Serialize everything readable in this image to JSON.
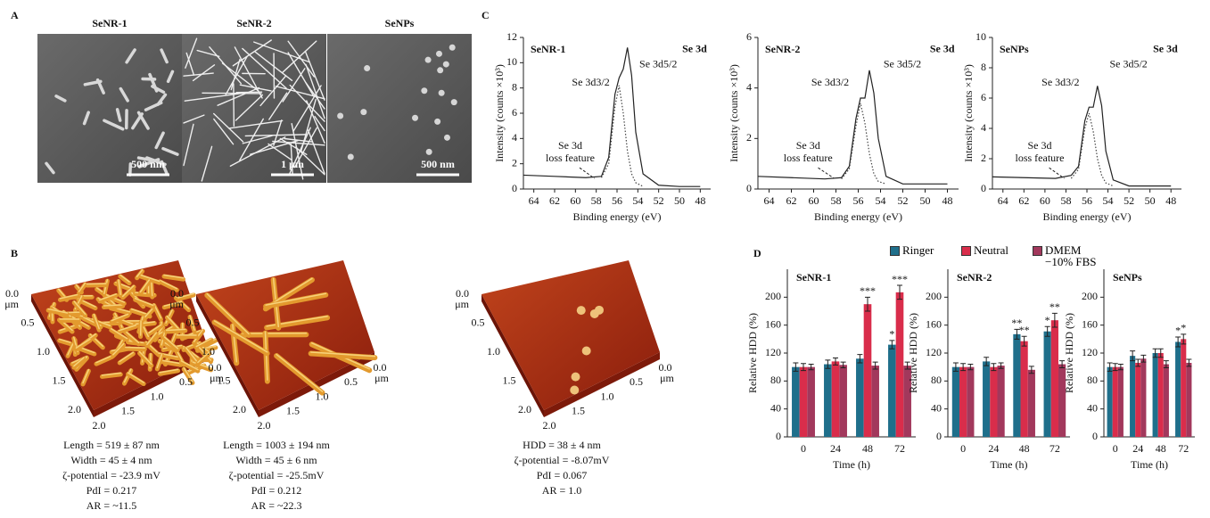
{
  "figure": {
    "A": {
      "label": "A",
      "images": [
        {
          "title": "SeNR-1",
          "scale": "500 nm"
        },
        {
          "title": "SeNR-2",
          "scale": "1 μm"
        },
        {
          "title": "SeNPs",
          "scale": "500 nm"
        }
      ]
    },
    "B": {
      "label": "B",
      "depth_ticks": [
        "0.0",
        "0.5",
        "1.0",
        "1.5",
        "2.0"
      ],
      "width_ticks": [
        "2.0",
        "1.5",
        "1.0",
        "0.5",
        "0.0"
      ],
      "unit": "μm",
      "images": [
        {
          "props": [
            "Length = 519 ± 87 nm",
            "Width = 45 ± 4 nm",
            "ζ-potential = -23.9 mV",
            "PdI = 0.217",
            "AR = ~11.5"
          ]
        },
        {
          "props": [
            "Length = 1003 ± 194 nm",
            "Width = 45 ± 6 nm",
            "ζ-potential = -25.5mV",
            "PdI = 0.212",
            "AR = ~22.3"
          ]
        },
        {
          "props": [
            "HDD = 38 ± 4 nm",
            "ζ-potential = -8.07mV",
            "PdI = 0.067",
            "AR = 1.0"
          ]
        }
      ]
    },
    "C": {
      "label": "C"
    },
    "D": {
      "label": "D"
    }
  },
  "chart_data": [
    {
      "type": "line",
      "title": "SeNR-1",
      "annotations": [
        "Se 3d",
        "Se 3d3/2",
        "Se 3d5/2",
        "Se 3d",
        "loss feature"
      ],
      "x_label": "Binding energy (eV)",
      "y_label": "Intensity (counts ×10³)",
      "x": [
        65,
        62,
        59,
        57.5,
        56.8,
        56.2,
        55.8,
        55.4,
        55,
        54.6,
        54.2,
        53.5,
        52,
        50,
        48
      ],
      "xlim": [
        65,
        47
      ],
      "xticks": [
        64,
        62,
        60,
        58,
        56,
        54,
        52,
        50,
        48
      ],
      "ylim": [
        0,
        12
      ],
      "yticks": [
        0,
        2,
        4,
        6,
        8,
        10,
        12
      ],
      "series": [
        {
          "color": "#222222",
          "dash": "solid",
          "values": [
            1.1,
            1.0,
            0.9,
            1.0,
            2.5,
            7.5,
            8.8,
            9.5,
            11.2,
            9.0,
            4.5,
            1.2,
            0.3,
            0.2,
            0.2
          ]
        },
        {
          "color": "#444444",
          "dash": "dotted",
          "values": [
            null,
            null,
            null,
            0.9,
            2.0,
            6.5,
            8.2,
            6.0,
            3.0,
            1.2,
            0.5,
            0.2,
            null,
            null,
            null
          ]
        }
      ]
    },
    {
      "type": "line",
      "title": "SeNR-2",
      "annotations": [
        "Se 3d",
        "Se 3d3/2",
        "Se 3d5/2",
        "Se 3d",
        "loss feature"
      ],
      "x_label": "Binding energy (eV)",
      "y_label": "Intensity (counts ×10³)",
      "x": [
        65,
        62,
        59,
        57.5,
        56.8,
        56.2,
        55.8,
        55.4,
        55,
        54.6,
        54.2,
        53.5,
        52,
        50,
        48
      ],
      "xlim": [
        65,
        47
      ],
      "xticks": [
        64,
        62,
        60,
        58,
        56,
        54,
        52,
        50,
        48
      ],
      "ylim": [
        0,
        6
      ],
      "yticks": [
        0,
        2,
        4,
        6
      ],
      "series": [
        {
          "color": "#222222",
          "dash": "solid",
          "values": [
            0.5,
            0.45,
            0.4,
            0.45,
            0.9,
            2.8,
            3.6,
            3.6,
            4.7,
            3.8,
            2.0,
            0.5,
            0.2,
            0.2,
            0.2
          ]
        },
        {
          "color": "#444444",
          "dash": "dotted",
          "values": [
            null,
            null,
            null,
            0.4,
            0.8,
            2.5,
            3.4,
            2.6,
            1.4,
            0.6,
            0.3,
            0.2,
            null,
            null,
            null
          ]
        }
      ]
    },
    {
      "type": "line",
      "title": "SeNPs",
      "annotations": [
        "Se 3d",
        "Se 3d3/2",
        "Se 3d5/2",
        "Se 3d",
        "loss feature"
      ],
      "x_label": "Binding energy (eV)",
      "y_label": "Intensity (counts ×10³)",
      "x": [
        65,
        62,
        59,
        57.5,
        56.8,
        56.2,
        55.8,
        55.4,
        55,
        54.6,
        54.2,
        53.5,
        52,
        50,
        48
      ],
      "xlim": [
        65,
        47
      ],
      "xticks": [
        64,
        62,
        60,
        58,
        56,
        54,
        52,
        50,
        48
      ],
      "ylim": [
        0,
        10
      ],
      "yticks": [
        0,
        2,
        4,
        6,
        8,
        10
      ],
      "series": [
        {
          "color": "#222222",
          "dash": "solid",
          "values": [
            0.8,
            0.75,
            0.7,
            0.9,
            1.5,
            4.5,
            5.4,
            5.4,
            6.8,
            5.5,
            2.5,
            0.6,
            0.2,
            0.2,
            0.2
          ]
        },
        {
          "color": "#444444",
          "dash": "dotted",
          "values": [
            null,
            null,
            null,
            0.7,
            1.3,
            4.0,
            5.0,
            3.8,
            2.0,
            0.9,
            0.4,
            0.2,
            null,
            null,
            null
          ]
        }
      ]
    },
    {
      "type": "bar",
      "title": "SeNR-1",
      "x_label": "Time (h)",
      "y_label": "Relative HDD (%)",
      "categories": [
        "0",
        "24",
        "48",
        "72"
      ],
      "ylim": [
        0,
        240
      ],
      "yticks": [
        0,
        40,
        80,
        120,
        160,
        200
      ],
      "series": [
        {
          "name": "Ringer",
          "color": "#1f6f8b",
          "values": [
            100,
            104,
            112,
            132
          ],
          "errors": [
            6,
            6,
            6,
            6
          ],
          "stars": [
            null,
            null,
            null,
            "*"
          ]
        },
        {
          "name": "Neutral",
          "color": "#d92d4b",
          "values": [
            100,
            108,
            190,
            207
          ],
          "errors": [
            5,
            5,
            10,
            10
          ],
          "stars": [
            null,
            null,
            "***",
            "***"
          ]
        },
        {
          "name": "DMEM −10% FBS",
          "color": "#a2385c",
          "values": [
            100,
            103,
            102,
            102
          ],
          "errors": [
            4,
            4,
            5,
            5
          ],
          "stars": [
            null,
            null,
            null,
            null
          ]
        }
      ]
    },
    {
      "type": "bar",
      "title": "SeNR-2",
      "x_label": "Time (h)",
      "y_label": "Relative HDD (%)",
      "categories": [
        "0",
        "24",
        "48",
        "72"
      ],
      "ylim": [
        0,
        240
      ],
      "yticks": [
        0,
        40,
        80,
        120,
        160,
        200
      ],
      "series": [
        {
          "color": "#1f6f8b",
          "values": [
            100,
            108,
            147,
            151
          ],
          "errors": [
            6,
            6,
            7,
            7
          ],
          "stars": [
            null,
            null,
            "**",
            "*"
          ]
        },
        {
          "color": "#d92d4b",
          "values": [
            100,
            100,
            137,
            167
          ],
          "errors": [
            5,
            5,
            7,
            10
          ],
          "stars": [
            null,
            null,
            "**",
            "**"
          ]
        },
        {
          "color": "#a2385c",
          "values": [
            100,
            102,
            96,
            104
          ],
          "errors": [
            4,
            4,
            5,
            5
          ],
          "stars": [
            null,
            null,
            null,
            null
          ]
        }
      ]
    },
    {
      "type": "bar",
      "title": "SeNPs",
      "x_label": "Time (h)",
      "y_label": "Relative HDD (%)",
      "categories": [
        "0",
        "24",
        "48",
        "72"
      ],
      "ylim": [
        0,
        240
      ],
      "yticks": [
        0,
        40,
        80,
        120,
        160,
        200
      ],
      "series": [
        {
          "color": "#1f6f8b",
          "values": [
            100,
            116,
            120,
            136
          ],
          "errors": [
            6,
            7,
            6,
            7
          ],
          "stars": [
            null,
            null,
            null,
            "*"
          ]
        },
        {
          "color": "#d92d4b",
          "values": [
            100,
            106,
            120,
            140
          ],
          "errors": [
            5,
            5,
            6,
            7
          ],
          "stars": [
            null,
            null,
            null,
            "*"
          ]
        },
        {
          "color": "#a2385c",
          "values": [
            100,
            112,
            104,
            106
          ],
          "errors": [
            4,
            5,
            5,
            5
          ],
          "stars": [
            null,
            null,
            null,
            null
          ]
        }
      ]
    }
  ]
}
